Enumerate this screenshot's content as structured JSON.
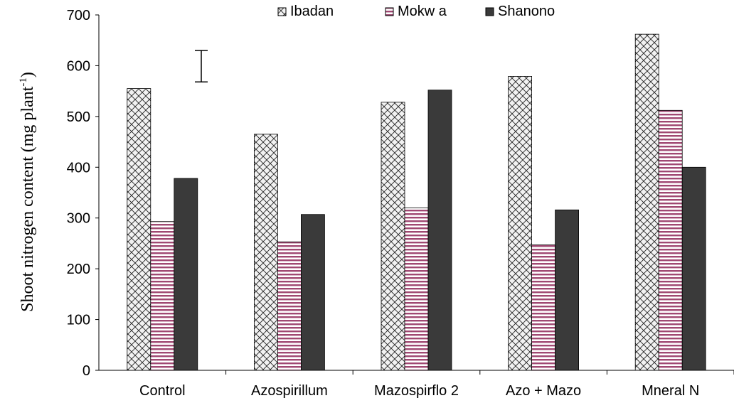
{
  "chart_data": {
    "type": "bar",
    "title": "",
    "xlabel": "",
    "ylabel": "Shoot nitrogen content (mg plant",
    "ylabel_superscript": "-1",
    "ylabel_suffix": ")",
    "ylim": [
      0,
      700
    ],
    "yticks": [
      0,
      100,
      200,
      300,
      400,
      500,
      600,
      700
    ],
    "categories": [
      "Control",
      "Azospirillum",
      "Mazospirflo 2",
      "Azo + Mazo",
      "Mneral N"
    ],
    "series": [
      {
        "name": "Ibadan",
        "values": [
          555,
          465,
          528,
          579,
          662
        ],
        "color": "#f0f0f0",
        "pattern": "crosshatch"
      },
      {
        "name": "Mokw a",
        "values": [
          293,
          253,
          320,
          247,
          512
        ],
        "color": "#b05080",
        "pattern": "horizontal-lines"
      },
      {
        "name": "Shanono",
        "values": [
          378,
          307,
          552,
          316,
          400
        ],
        "color": "#404040",
        "pattern": "solid"
      }
    ],
    "error_bar": {
      "low": 568,
      "high": 630
    },
    "legend_position": "top"
  }
}
